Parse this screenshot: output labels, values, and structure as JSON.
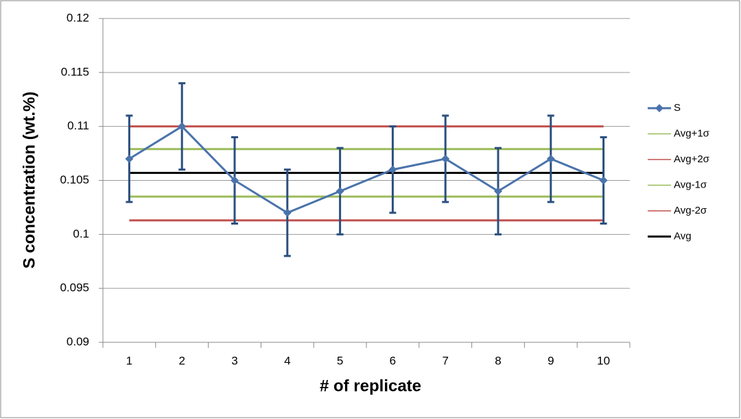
{
  "chart_data": {
    "type": "line",
    "x_label": "# of replicate",
    "y_label": "S concentration (wt.%)",
    "categories": [
      "1",
      "2",
      "3",
      "4",
      "5",
      "6",
      "7",
      "8",
      "9",
      "10"
    ],
    "ylim": [
      0.09,
      0.12
    ],
    "yticks": [
      0.09,
      0.095,
      0.1,
      0.105,
      0.11,
      0.115,
      0.12
    ],
    "grid": true,
    "legend": "right",
    "series": [
      {
        "name": "S",
        "color": "#4a73ab",
        "marker": "diamond",
        "error_color": "#2b4f7f",
        "values": [
          0.107,
          0.11,
          0.105,
          0.102,
          0.104,
          0.106,
          0.107,
          0.104,
          0.107,
          0.105
        ],
        "errors": [
          0.004,
          0.004,
          0.004,
          0.004,
          0.004,
          0.004,
          0.004,
          0.004,
          0.004,
          0.004
        ]
      },
      {
        "name": "Avg+1σ",
        "color": "#9bbb59",
        "values": [
          0.1079,
          0.1079,
          0.1079,
          0.1079,
          0.1079,
          0.1079,
          0.1079,
          0.1079,
          0.1079,
          0.1079
        ]
      },
      {
        "name": "Avg+2σ",
        "color": "#c0504d",
        "values": [
          0.11,
          0.11,
          0.11,
          0.11,
          0.11,
          0.11,
          0.11,
          0.11,
          0.11,
          0.11
        ]
      },
      {
        "name": "Avg-1σ",
        "color": "#9bbb59",
        "values": [
          0.1035,
          0.1035,
          0.1035,
          0.1035,
          0.1035,
          0.1035,
          0.1035,
          0.1035,
          0.1035,
          0.1035
        ]
      },
      {
        "name": "Avg-2σ",
        "color": "#c0504d",
        "values": [
          0.1013,
          0.1013,
          0.1013,
          0.1013,
          0.1013,
          0.1013,
          0.1013,
          0.1013,
          0.1013,
          0.1013
        ]
      },
      {
        "name": "Avg",
        "color": "#000000",
        "values": [
          0.1057,
          0.1057,
          0.1057,
          0.1057,
          0.1057,
          0.1057,
          0.1057,
          0.1057,
          0.1057,
          0.1057
        ]
      }
    ]
  }
}
